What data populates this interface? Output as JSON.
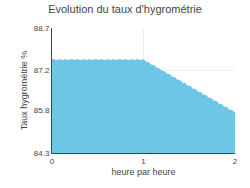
{
  "chart_data": {
    "type": "area",
    "title": "Evolution du taux d'hygrométrie",
    "xlabel": "heure par heure",
    "ylabel": "Taux hygrométrie %",
    "x": [
      0,
      1,
      2
    ],
    "values": [
      87.57,
      87.57,
      85.72
    ],
    "xlim": [
      0,
      2
    ],
    "ylim": [
      84.3,
      88.7
    ],
    "xticks": [
      0,
      1,
      2
    ],
    "yticks": [
      84.3,
      85.8,
      87.2,
      88.7
    ],
    "color": "#6ec6e6",
    "line_style": "dotted",
    "grid": true
  }
}
